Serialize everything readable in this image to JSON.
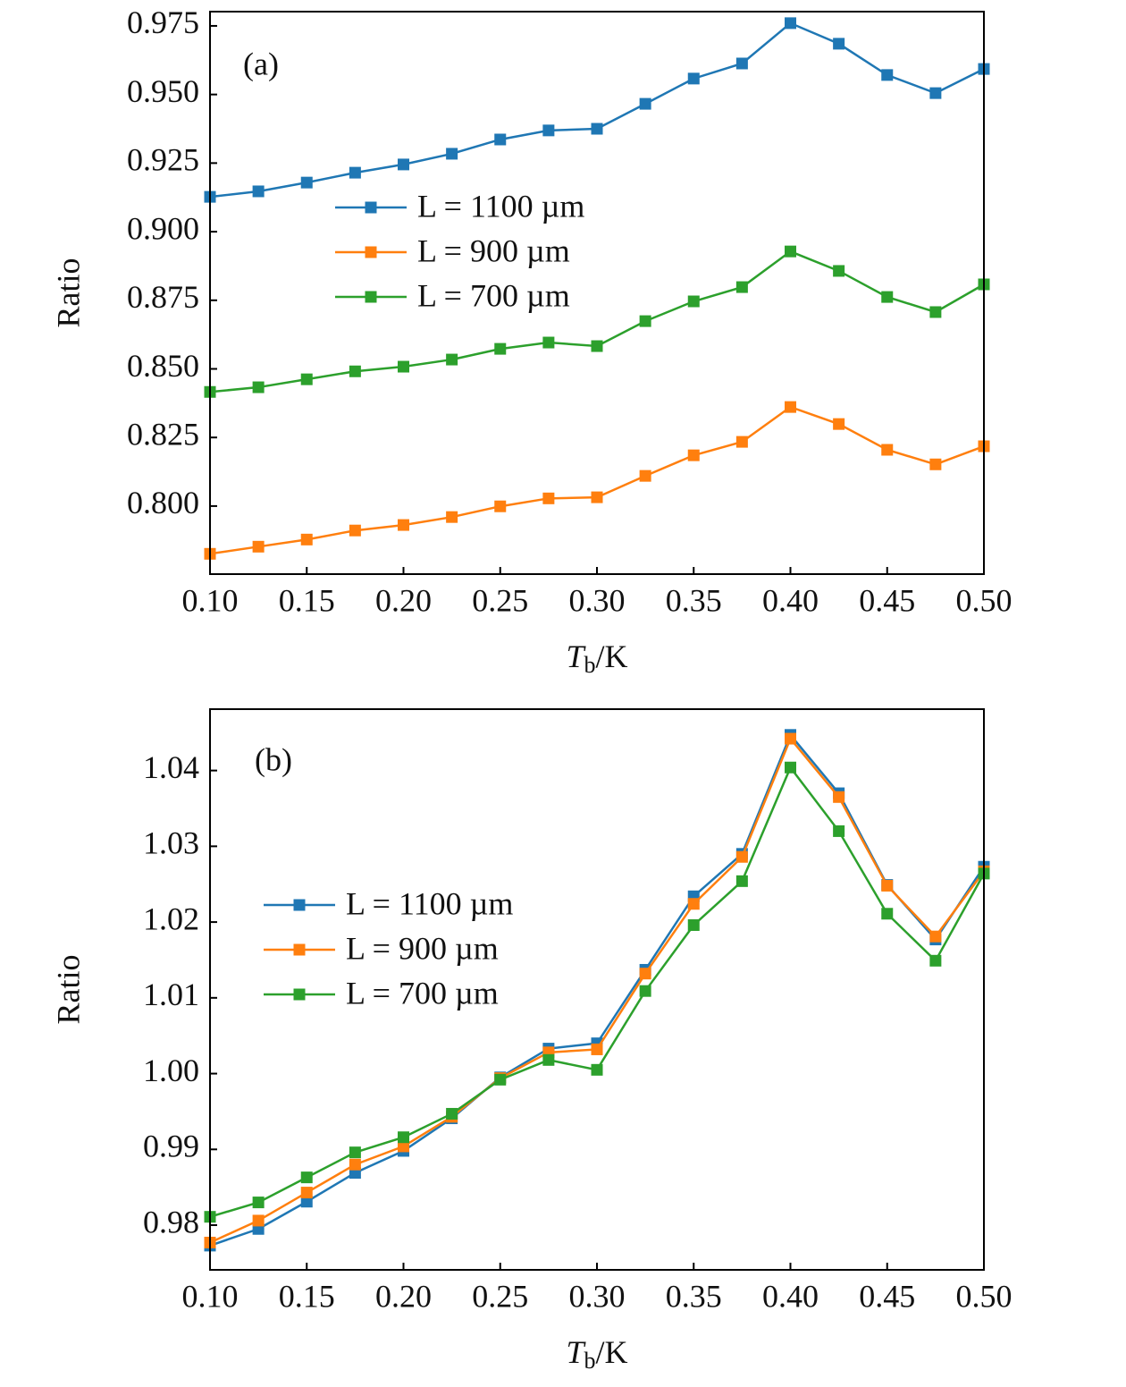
{
  "chart_data": [
    {
      "type": "line",
      "label": "(a)",
      "x_label": "Tb/K",
      "y_label": "Ratio",
      "x": [
        0.1,
        0.125,
        0.15,
        0.175,
        0.2,
        0.225,
        0.25,
        0.275,
        0.3,
        0.325,
        0.35,
        0.375,
        0.4,
        0.425,
        0.45,
        0.475,
        0.5
      ],
      "series": [
        {
          "name": "L = 1100 µm",
          "color": "#1f77b4",
          "values": [
            0.9127,
            0.9147,
            0.9179,
            0.9215,
            0.9245,
            0.9284,
            0.9336,
            0.9369,
            0.9375,
            0.9466,
            0.9558,
            0.9613,
            0.976,
            0.9685,
            0.9571,
            0.9505,
            0.9593
          ]
        },
        {
          "name": "L = 900 µm",
          "color": "#ff7f0e",
          "values": [
            0.7826,
            0.7852,
            0.7878,
            0.7911,
            0.7931,
            0.796,
            0.7999,
            0.8028,
            0.8032,
            0.811,
            0.8185,
            0.8234,
            0.8361,
            0.8299,
            0.8205,
            0.8152,
            0.8218
          ]
        },
        {
          "name": "L = 700 µm",
          "color": "#2ca02c",
          "values": [
            0.8416,
            0.8433,
            0.8462,
            0.8491,
            0.8508,
            0.8534,
            0.8573,
            0.8596,
            0.8583,
            0.8674,
            0.8746,
            0.8798,
            0.8928,
            0.8857,
            0.8762,
            0.8707,
            0.8808
          ]
        }
      ],
      "xlim": [
        0.1,
        0.5
      ],
      "xticks": [
        {
          "value": 0.1,
          "label": "0.10"
        },
        0.15,
        {
          "value": 0.2,
          "label": "0.20"
        },
        0.25,
        {
          "value": 0.3,
          "label": "0.30"
        },
        0.35,
        {
          "value": 0.4,
          "label": "0.40"
        },
        0.45,
        {
          "value": 0.5,
          "label": "0.50"
        }
      ],
      "ylim": [
        0.7752,
        0.9802
      ],
      "yticks": [
        {
          "value": 0.8,
          "label": "0.800"
        },
        0.825,
        {
          "value": 0.85,
          "label": "0.850"
        },
        0.875,
        {
          "value": 0.9,
          "label": "0.900"
        },
        0.925,
        {
          "value": 0.95,
          "label": "0.950"
        },
        0.975
      ],
      "legend_loc": "center left"
    },
    {
      "type": "line",
      "label": "(b)",
      "x_label": "Tb/K",
      "y_label": "Ratio",
      "x": [
        0.1,
        0.125,
        0.15,
        0.175,
        0.2,
        0.225,
        0.25,
        0.275,
        0.3,
        0.325,
        0.35,
        0.375,
        0.4,
        0.425,
        0.45,
        0.475,
        0.5
      ],
      "series": [
        {
          "name": "L = 1100 µm",
          "color": "#1f77b4",
          "values": [
            0.9773,
            0.9795,
            0.9831,
            0.9869,
            0.9898,
            0.9941,
            0.9995,
            1.0033,
            1.004,
            1.0137,
            1.0234,
            1.029,
            1.0447,
            1.037,
            1.0249,
            1.0177,
            1.0273
          ]
        },
        {
          "name": "L = 900 µm",
          "color": "#ff7f0e",
          "values": [
            0.9777,
            0.9806,
            0.9843,
            0.988,
            0.9904,
            0.9943,
            0.9994,
            1.0028,
            1.0032,
            1.0132,
            1.0224,
            1.0286,
            1.0442,
            1.0365,
            1.0248,
            1.0181,
            1.0267
          ]
        },
        {
          "name": "L = 700 µm",
          "color": "#2ca02c",
          "values": [
            0.9811,
            0.983,
            0.9863,
            0.9896,
            0.9916,
            0.9947,
            0.9992,
            1.0018,
            1.0005,
            1.0109,
            1.0196,
            1.0254,
            1.0404,
            1.032,
            1.0211,
            1.0149,
            1.0264
          ]
        }
      ],
      "xlim": [
        0.1,
        0.5
      ],
      "xticks": [
        {
          "value": 0.1,
          "label": "0.10"
        },
        0.15,
        {
          "value": 0.2,
          "label": "0.20"
        },
        0.25,
        {
          "value": 0.3,
          "label": "0.30"
        },
        0.35,
        {
          "value": 0.4,
          "label": "0.40"
        },
        0.45,
        {
          "value": 0.5,
          "label": "0.50"
        }
      ],
      "ylim": [
        0.9741,
        1.0481
      ],
      "yticks": [
        0.98,
        0.99,
        {
          "value": 1.0,
          "label": "1.00"
        },
        1.01,
        1.02,
        1.03,
        1.04
      ],
      "legend_loc": "center left"
    }
  ]
}
